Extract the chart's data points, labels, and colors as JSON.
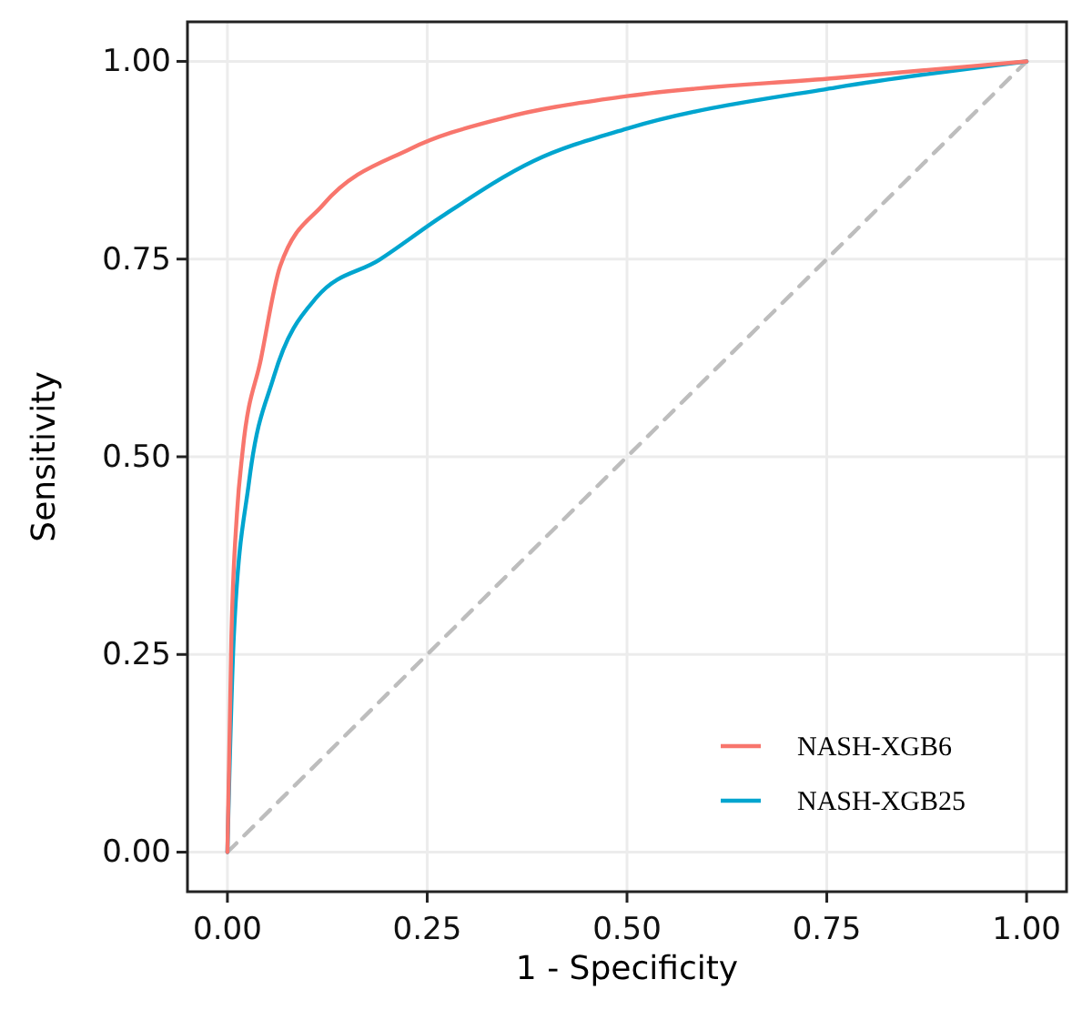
{
  "chart_data": {
    "type": "line",
    "xlabel": "1 - Specificity",
    "ylabel": "Sensitivity",
    "xlim": [
      -0.05,
      1.05
    ],
    "ylim": [
      -0.05,
      1.05
    ],
    "xticks": [
      {
        "value": 0,
        "label": "0.00"
      },
      {
        "value": 0.25,
        "label": "0.25"
      },
      {
        "value": 0.5,
        "label": "0.50"
      },
      {
        "value": 0.75,
        "label": "0.75"
      },
      {
        "value": 1,
        "label": "1.00"
      }
    ],
    "yticks": [
      {
        "value": 0,
        "label": "0.00"
      },
      {
        "value": 0.25,
        "label": "0.25"
      },
      {
        "value": 0.5,
        "label": "0.50"
      },
      {
        "value": 0.75,
        "label": "0.75"
      },
      {
        "value": 1,
        "label": "1.00"
      }
    ],
    "grid": true,
    "legend": "bottom right",
    "series": [
      {
        "name": "NASH-XGB6",
        "color": "#f8766d",
        "x": [
          0,
          0.005,
          0.012,
          0.019,
          0.042,
          0.066,
          0.12,
          0.228,
          0.344,
          0.5,
          0.762,
          1
        ],
        "values": [
          0,
          0.273,
          0.429,
          0.507,
          0.624,
          0.741,
          0.819,
          0.889,
          0.928,
          0.956,
          0.979,
          1
        ]
      },
      {
        "name": "NASH-XGB25",
        "color": "#00a5cf",
        "x": [
          0,
          0.008,
          0.027,
          0.058,
          0.112,
          0.19,
          0.267,
          0.383,
          0.5,
          0.762,
          1
        ],
        "values": [
          0,
          0.273,
          0.468,
          0.601,
          0.702,
          0.749,
          0.803,
          0.874,
          0.915,
          0.967,
          1
        ]
      },
      {
        "color": "#bdbdbd",
        "line_style": "dashed",
        "x": [
          0,
          1
        ],
        "values": [
          0,
          1
        ]
      }
    ]
  }
}
